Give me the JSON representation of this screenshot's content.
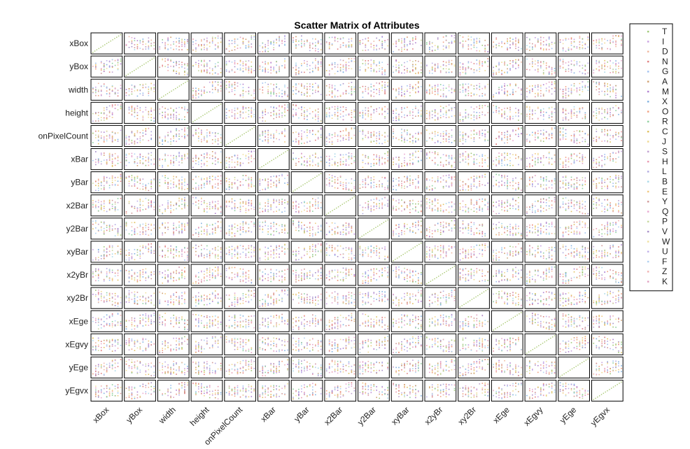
{
  "chart_data": {
    "type": "scatter",
    "title": "Scatter Matrix of Attributes",
    "attributes": [
      "xBox",
      "yBox",
      "width",
      "height",
      "onPixelCount",
      "xBar",
      "yBar",
      "x2Bar",
      "y2Bar",
      "xyBar",
      "x2yBr",
      "xy2Br",
      "xEge",
      "xEgvy",
      "yEge",
      "yEgvx"
    ],
    "diagonal": "identity line",
    "grid": false,
    "legend": {
      "placement": "right",
      "entries": [
        {
          "label": "T",
          "color": "#a0c878"
        },
        {
          "label": "I",
          "color": "#c8a0e0"
        },
        {
          "label": "D",
          "color": "#f0b8a0"
        },
        {
          "label": "N",
          "color": "#e08080"
        },
        {
          "label": "G",
          "color": "#a0c0f0"
        },
        {
          "label": "A",
          "color": "#d0a070"
        },
        {
          "label": "M",
          "color": "#b080d0"
        },
        {
          "label": "X",
          "color": "#80b0e0"
        },
        {
          "label": "O",
          "color": "#f0a080"
        },
        {
          "label": "R",
          "color": "#90d0a0"
        },
        {
          "label": "C",
          "color": "#e0c060"
        },
        {
          "label": "J",
          "color": "#f0d890"
        },
        {
          "label": "S",
          "color": "#c0a0d0"
        },
        {
          "label": "H",
          "color": "#e898b0"
        },
        {
          "label": "L",
          "color": "#b0a8e0"
        },
        {
          "label": "B",
          "color": "#a8d8e8"
        },
        {
          "label": "E",
          "color": "#f0c880"
        },
        {
          "label": "Y",
          "color": "#d09898"
        },
        {
          "label": "Q",
          "color": "#e8a8d0"
        },
        {
          "label": "P",
          "color": "#c8d8a0"
        },
        {
          "label": "V",
          "color": "#a890c8"
        },
        {
          "label": "W",
          "color": "#f0e0a0"
        },
        {
          "label": "U",
          "color": "#c0b0e8"
        },
        {
          "label": "F",
          "color": "#b0d0f0"
        },
        {
          "label": "Z",
          "color": "#f0b0b0"
        },
        {
          "label": "K",
          "color": "#e0a0c0"
        }
      ]
    }
  }
}
